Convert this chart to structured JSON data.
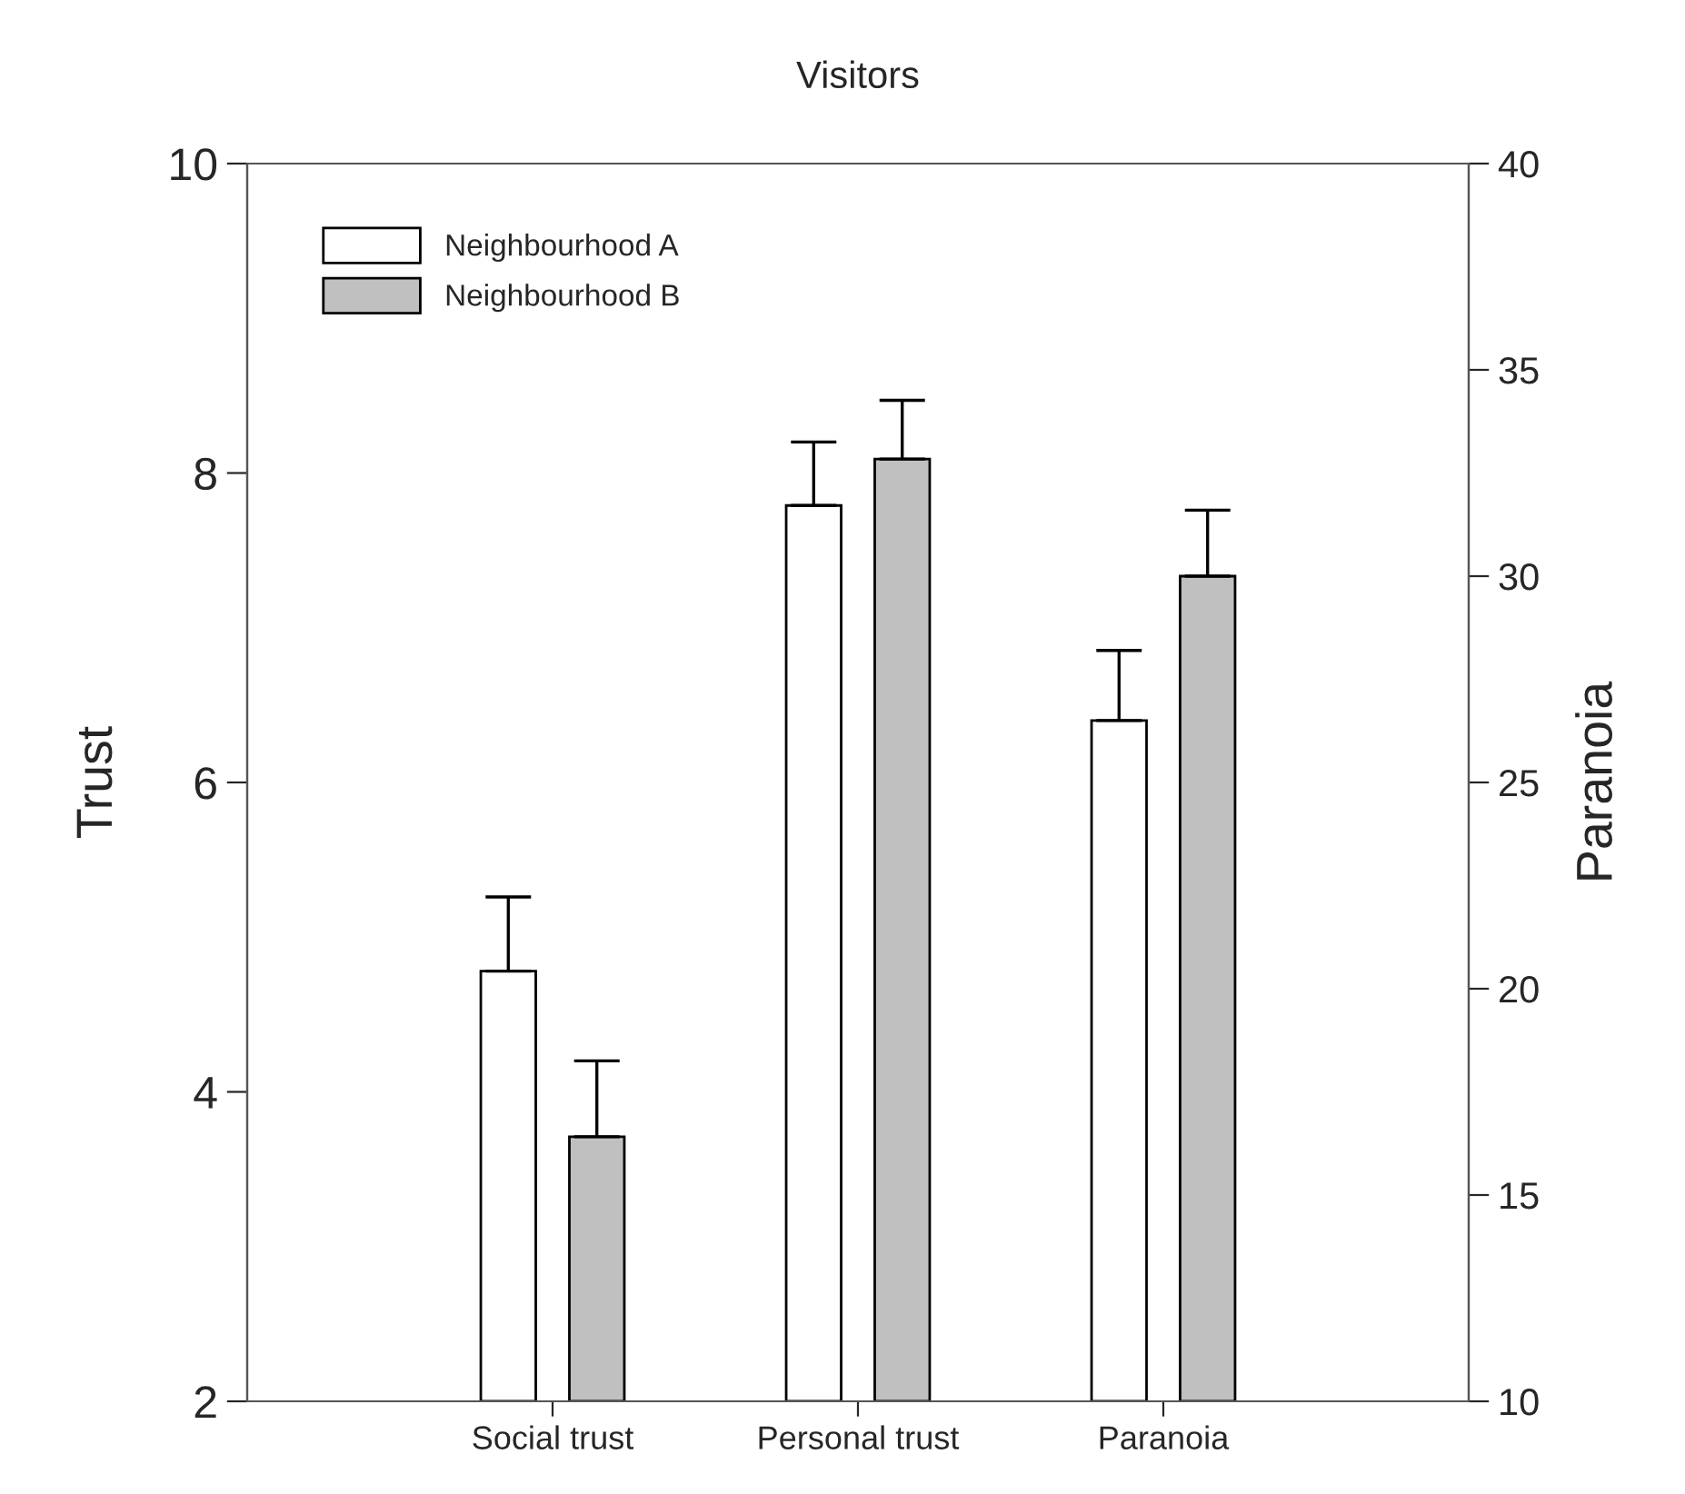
{
  "chart_data": {
    "type": "bar",
    "title": "Visitors",
    "ylabel": "Trust",
    "y2label": "Paranoia",
    "categories": [
      "Social trust",
      "Personal trust",
      "Paranoia"
    ],
    "series": [
      {
        "name": "Neighbourhood A",
        "color": "#ffffff",
        "values": [
          4.78,
          7.79,
          null
        ],
        "errors": [
          [
            4.78,
            5.26
          ],
          [
            7.79,
            8.2
          ],
          null
        ]
      },
      {
        "name": "Neighbourhood B",
        "color": "#c0c0c0",
        "values": [
          3.71,
          8.09,
          null
        ],
        "errors": [
          [
            3.71,
            4.2
          ],
          [
            8.09,
            8.47
          ],
          null
        ]
      },
      {
        "color": "#ffffff",
        "axis": "y2",
        "values": [
          null,
          null,
          26.5
        ],
        "errors": [
          null,
          null,
          [
            26.5,
            28.2
          ]
        ]
      },
      {
        "color": "#c0c0c0",
        "axis": "y2",
        "values": [
          null,
          null,
          30.0
        ],
        "errors": [
          null,
          null,
          [
            30.0,
            31.6
          ]
        ]
      }
    ],
    "ylim": [
      2,
      10
    ],
    "yticks": [
      2,
      4,
      6,
      8,
      10
    ],
    "y2lim": [
      10,
      40
    ],
    "y2ticks": [
      10,
      15,
      20,
      25,
      30,
      35,
      40
    ],
    "legend": "top left",
    "grid": false
  }
}
